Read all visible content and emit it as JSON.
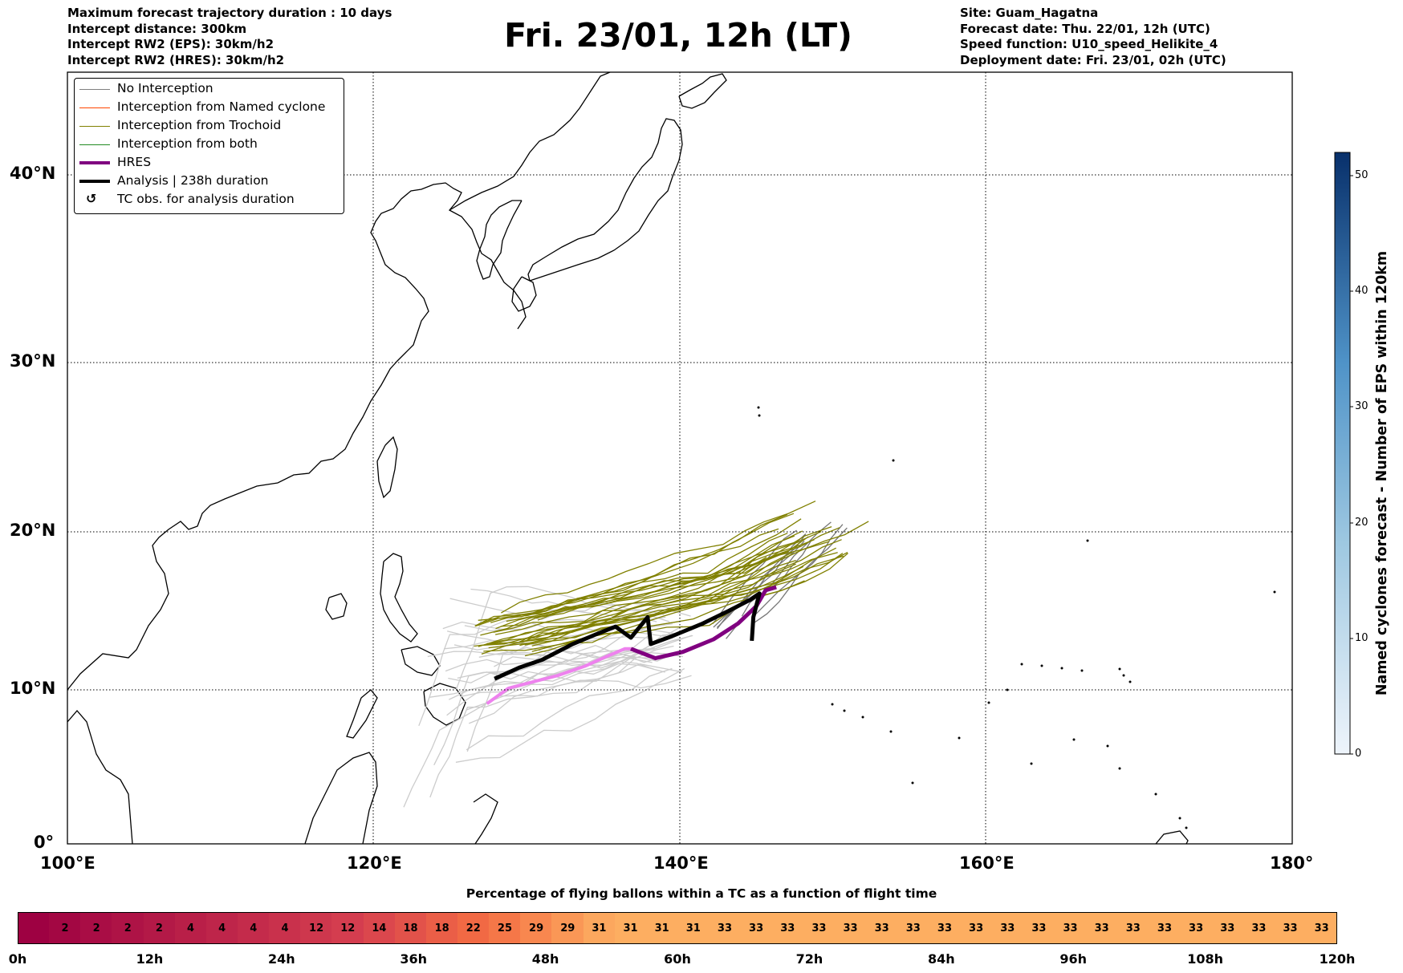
{
  "header": {
    "left_lines": [
      "Maximum forecast trajectory duration : 10 days",
      "Intercept distance: 300km",
      "Intercept RW2 (EPS):  30km/h2",
      "Intercept RW2 (HRES): 30km/h2"
    ],
    "title": "Fri. 23/01, 12h (LT)",
    "right_lines": [
      "Site: Guam_Hagatna",
      "Forecast date: Thu. 22/01, 12h (UTC)",
      "Speed function: U10_speed_Helikite_4",
      "Deployment date: Fri. 23/01, 02h (UTC)"
    ]
  },
  "map": {
    "lon_range": [
      100,
      180
    ],
    "lat_range": [
      0,
      45
    ],
    "lon_ticks": [
      "100°E",
      "120°E",
      "140°E",
      "160°E",
      "180°"
    ],
    "lat_ticks": [
      "0°",
      "10°N",
      "20°N",
      "30°N",
      "40°N"
    ],
    "gridlines": "dotted"
  },
  "legend": {
    "entries": [
      {
        "label": "No Interception",
        "color": "#808080"
      },
      {
        "label": "Interception from Named cyclone",
        "color": "#ff4500"
      },
      {
        "label": "Interception from Trochoid",
        "color": "#808000"
      },
      {
        "label": "Interception from both",
        "color": "#228b22"
      },
      {
        "label": "HRES",
        "color": "#800080"
      },
      {
        "label": "Analysis | 238h duration",
        "color": "#000000"
      },
      {
        "label": "TC obs. for analysis duration",
        "color": "#000000"
      }
    ],
    "symbol": "↺"
  },
  "colorbar_vertical": {
    "title": "Named cyclones forecast - Number of EPS within 120km",
    "ticks": [
      "0",
      "10",
      "20",
      "30",
      "40",
      "50"
    ],
    "range": [
      0,
      52
    ],
    "color_low": "#e8f0fa",
    "color_high": "#08306b"
  },
  "colorbar_horizontal": {
    "title": "Percentage of flying ballons within a TC as a function of flight time",
    "values": [
      "",
      "2",
      "2",
      "2",
      "2",
      "4",
      "4",
      "4",
      "4",
      "12",
      "12",
      "14",
      "18",
      "18",
      "22",
      "25",
      "29",
      "29",
      "31",
      "31",
      "31",
      "31",
      "33",
      "33",
      "33",
      "33",
      "33",
      "33",
      "33",
      "33",
      "33",
      "33",
      "33",
      "33",
      "33",
      "33",
      "33",
      "33",
      "33",
      "33",
      "33",
      "33"
    ],
    "ticks": [
      "0h",
      "12h",
      "24h",
      "36h",
      "48h",
      "60h",
      "72h",
      "84h",
      "96h",
      "108h",
      "120h"
    ]
  },
  "tracks": {
    "analysis": {
      "color": "#000000",
      "points": [
        [
          127.9,
          10.7
        ],
        [
          129.5,
          11.4
        ],
        [
          131,
          11.9
        ],
        [
          133,
          12.9
        ],
        [
          134.5,
          13.5
        ],
        [
          135.8,
          14.0
        ],
        [
          136.8,
          13.3
        ],
        [
          137.9,
          14.6
        ],
        [
          138.1,
          12.9
        ],
        [
          139.5,
          13.4
        ],
        [
          141.5,
          14.2
        ],
        [
          143.2,
          15.0
        ],
        [
          144.6,
          15.7
        ],
        [
          145.2,
          16.1
        ],
        [
          144.8,
          14.6
        ],
        [
          144.7,
          13.1
        ]
      ]
    },
    "hres": {
      "color": "#800080",
      "points": [
        [
          136.8,
          12.6
        ],
        [
          138.4,
          12.0
        ],
        [
          140.2,
          12.4
        ],
        [
          142.2,
          13.2
        ],
        [
          143.8,
          14.2
        ],
        [
          145.0,
          15.3
        ],
        [
          145.6,
          16.3
        ],
        [
          146.3,
          16.5
        ]
      ]
    },
    "hres_early": {
      "color": "#ee82ee",
      "points": [
        [
          127.4,
          9.1
        ],
        [
          128.8,
          10.1
        ],
        [
          130.4,
          10.5
        ],
        [
          132.0,
          10.9
        ],
        [
          133.8,
          11.5
        ],
        [
          135.2,
          12.1
        ],
        [
          136.4,
          12.6
        ],
        [
          136.8,
          12.6
        ]
      ]
    }
  }
}
